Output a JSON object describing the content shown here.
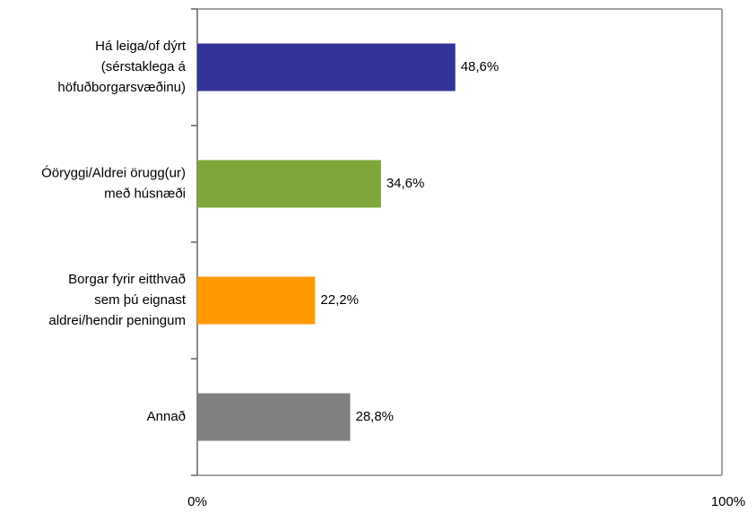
{
  "chart_data": {
    "type": "bar",
    "orientation": "horizontal",
    "categories": [
      "Há leiga/of dýrt\n(sérstaklega á\nhöfuðborgarsvæðinu)",
      "Óöryggi/Aldrei örugg(ur)\nmeð húsnæði",
      "Borgar fyrir eitthvað\nsem þú eignast\naldrei/hendir peningum",
      "Annað"
    ],
    "values": [
      48.6,
      34.6,
      22.2,
      28.8
    ],
    "value_labels": [
      "48,6%",
      "34,6%",
      "22,2%",
      "28,8%"
    ],
    "colors": [
      "#333399",
      "#7ea63a",
      "#ff9900",
      "#808080"
    ],
    "xlim": [
      0,
      100
    ],
    "xticks": [
      {
        "value": 0,
        "label": "0%"
      },
      {
        "value": 100,
        "label": "100%"
      }
    ]
  }
}
